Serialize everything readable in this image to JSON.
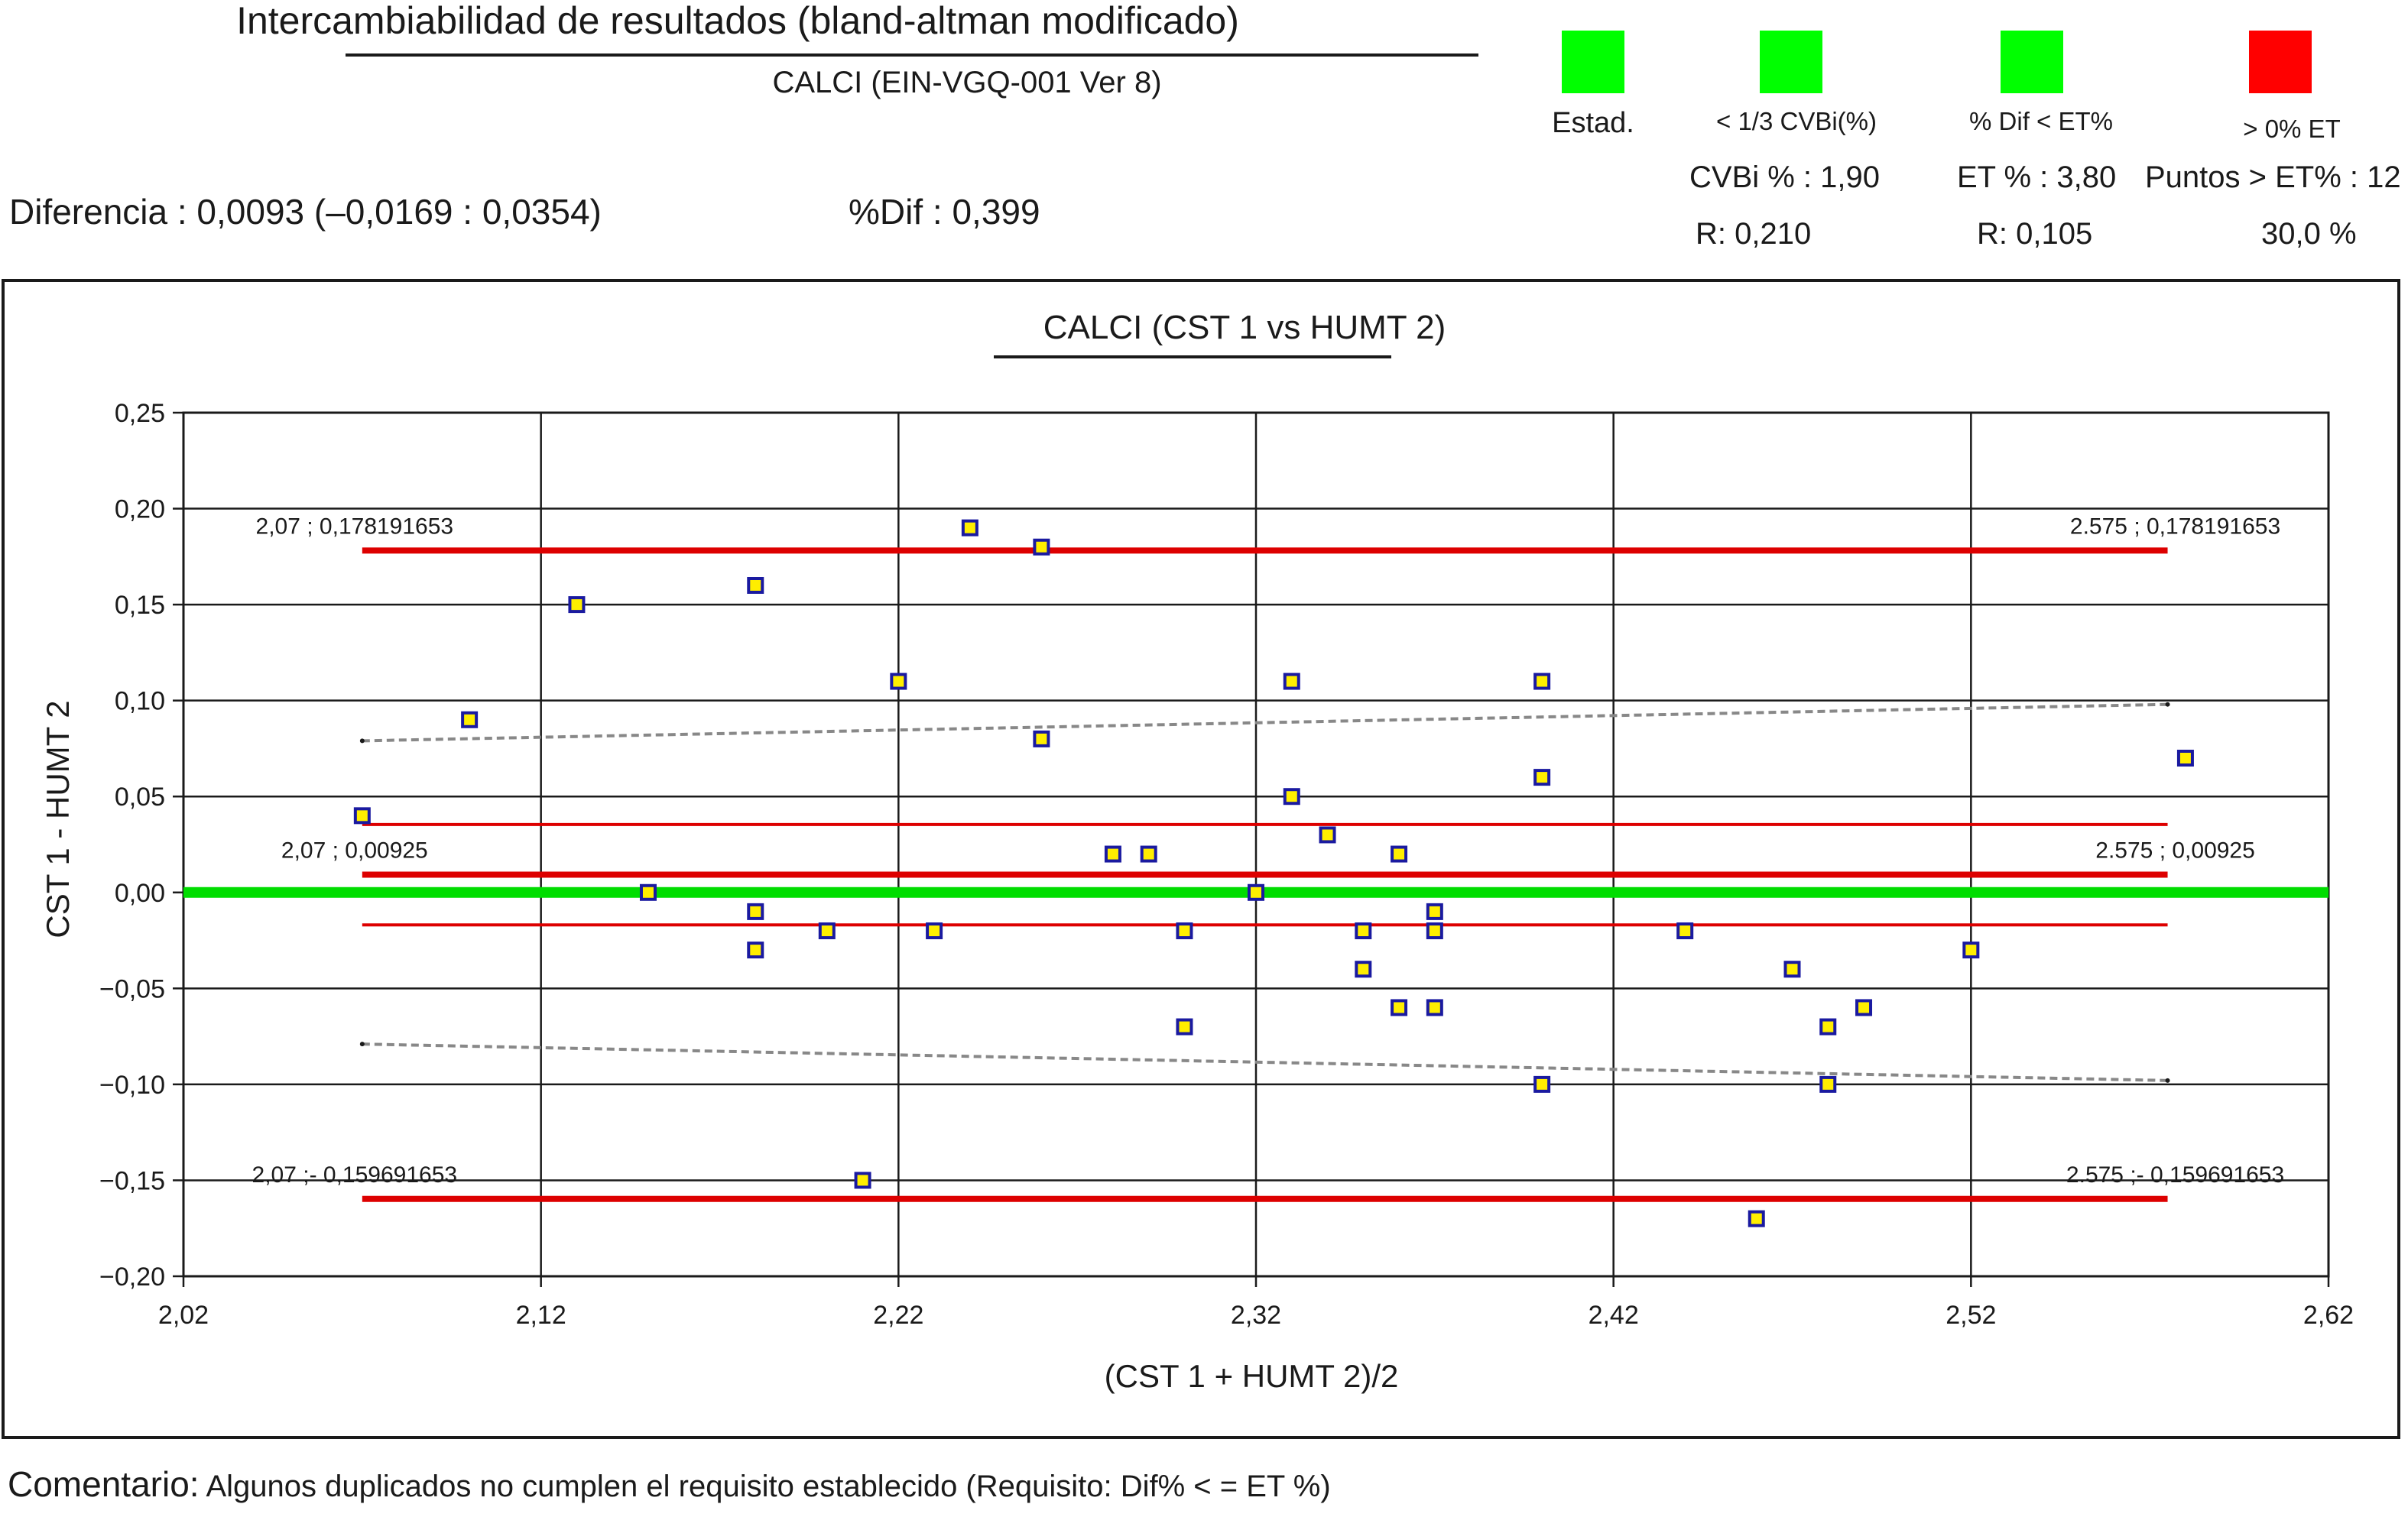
{
  "header": {
    "title": "Intercambiabilidad de resultados (bland-altman modificado)",
    "subtitle": "CALCI (EIN-VGQ-001 Ver 8)"
  },
  "stats": {
    "diferencia": "Diferencia : 0,0093 (–0,0169 : 0,0354)",
    "pct_dif": "%Dif : 0,399"
  },
  "indicators": [
    {
      "label": "Estad.",
      "color": "#00ff00"
    },
    {
      "label": "< 1/3 CVBi(%)",
      "color": "#00ff00"
    },
    {
      "label": "% Dif < ET%",
      "color": "#00ff00"
    },
    {
      "label": "> 0% ET",
      "color": "#ff0000"
    }
  ],
  "summary": {
    "cvbi": "CVBi % : 1,90",
    "et": "ET % : 3,80",
    "puntos": "Puntos > ET% : 12",
    "r1": "R: 0,210",
    "r2": "R: 0,105",
    "pct": "30,0 %"
  },
  "chart_data": {
    "type": "scatter",
    "title": "CALCI  (CST 1 vs HUMT 2)",
    "xlabel": "(CST 1 + HUMT 2)/2",
    "ylabel": "CST 1 - HUMT 2",
    "xlim": [
      2.02,
      2.62
    ],
    "ylim": [
      -0.2,
      0.25
    ],
    "x_ticks": [
      "2,02",
      "2,12",
      "2,22",
      "2,32",
      "2,42",
      "2,52",
      "2,62"
    ],
    "y_ticks": [
      "0,25",
      "0,20",
      "0,15",
      "0,10",
      "0,05",
      "0,00",
      "−0,05",
      "−0,10",
      "−0,15",
      "−0,20"
    ],
    "grid": true,
    "colors": {
      "zero_line": "#00dd00",
      "limit": "#dd0000",
      "trend": "#888888",
      "marker_fill": "#ffee00",
      "marker_edge": "#1a1aa0"
    },
    "points": [
      [
        2.07,
        0.04
      ],
      [
        2.1,
        0.09
      ],
      [
        2.13,
        0.15
      ],
      [
        2.15,
        0.0
      ],
      [
        2.18,
        0.16
      ],
      [
        2.18,
        -0.01
      ],
      [
        2.18,
        -0.03
      ],
      [
        2.2,
        -0.02
      ],
      [
        2.21,
        -0.15
      ],
      [
        2.22,
        0.11
      ],
      [
        2.23,
        -0.02
      ],
      [
        2.24,
        0.19
      ],
      [
        2.26,
        0.18
      ],
      [
        2.26,
        0.08
      ],
      [
        2.28,
        0.02
      ],
      [
        2.29,
        0.02
      ],
      [
        2.3,
        -0.02
      ],
      [
        2.3,
        -0.07
      ],
      [
        2.32,
        0.0
      ],
      [
        2.33,
        0.11
      ],
      [
        2.33,
        0.05
      ],
      [
        2.34,
        0.03
      ],
      [
        2.35,
        -0.02
      ],
      [
        2.35,
        -0.04
      ],
      [
        2.36,
        0.02
      ],
      [
        2.36,
        -0.06
      ],
      [
        2.37,
        -0.01
      ],
      [
        2.37,
        -0.02
      ],
      [
        2.37,
        -0.06
      ],
      [
        2.4,
        0.11
      ],
      [
        2.4,
        0.06
      ],
      [
        2.4,
        -0.1
      ],
      [
        2.44,
        -0.02
      ],
      [
        2.46,
        -0.17
      ],
      [
        2.47,
        -0.04
      ],
      [
        2.48,
        -0.07
      ],
      [
        2.48,
        -0.1
      ],
      [
        2.49,
        -0.06
      ],
      [
        2.52,
        -0.03
      ],
      [
        2.58,
        0.07
      ]
    ],
    "zero_line": 0.0,
    "upper_limit": {
      "x": [
        2.07,
        2.575
      ],
      "y": 0.178191653,
      "label_left": "2,07 ; 0,178191653",
      "label_right": "2.575 ; 0,178191653"
    },
    "mean_line": {
      "x": [
        2.07,
        2.575
      ],
      "y": 0.00925,
      "label_left": "2,07 ; 0,00925",
      "label_right": "2.575 ; 0,00925"
    },
    "lower_limit": {
      "x": [
        2.07,
        2.575
      ],
      "y": -0.159691653,
      "label_left": "2,07 ;- 0,159691653",
      "label_right": "2.575 ;- 0,159691653"
    },
    "ci_upper": {
      "x": [
        2.07,
        2.575
      ],
      "y": 0.0354
    },
    "ci_lower": {
      "x": [
        2.07,
        2.575
      ],
      "y": -0.0169
    },
    "trend_upper": {
      "x": [
        2.07,
        2.575
      ],
      "y": [
        0.079,
        0.098
      ]
    },
    "trend_lower": {
      "x": [
        2.07,
        2.575
      ],
      "y": [
        -0.079,
        -0.098
      ]
    }
  },
  "comment": {
    "lead": "Comentario:",
    "text": " Algunos duplicados no cumplen el requisito establecido (Requisito: Dif% < = ET %)"
  }
}
